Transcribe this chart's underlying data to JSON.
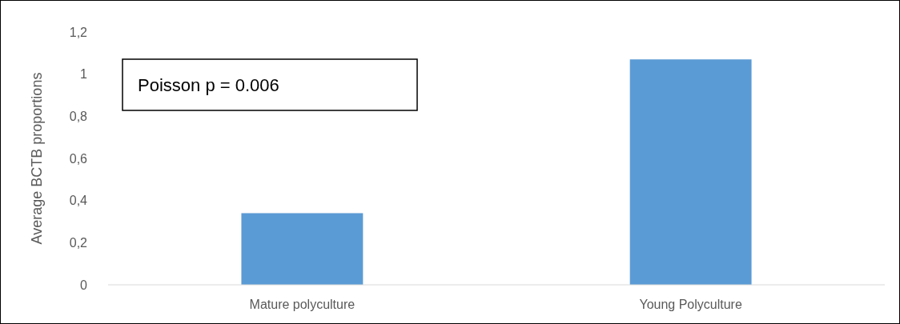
{
  "chart_data": {
    "type": "bar",
    "ylabel": "Average BCTB proportions",
    "categories": [
      "Mature polyculture",
      "Young Polyculture"
    ],
    "values": [
      0.34,
      1.07
    ],
    "color": "#5b9bd5",
    "ylim": [
      0,
      1.2
    ],
    "yticks": [
      0,
      {
        "value": 0.2,
        "label": "0,2"
      },
      {
        "value": 0.4,
        "label": "0,4"
      },
      {
        "value": 0.6,
        "label": "0,6"
      },
      {
        "value": 0.8,
        "label": "0,8"
      },
      1,
      {
        "value": 1.2,
        "label": "1,2"
      }
    ],
    "annotations": [
      "Poisson p = 0.006"
    ],
    "grid": false
  }
}
